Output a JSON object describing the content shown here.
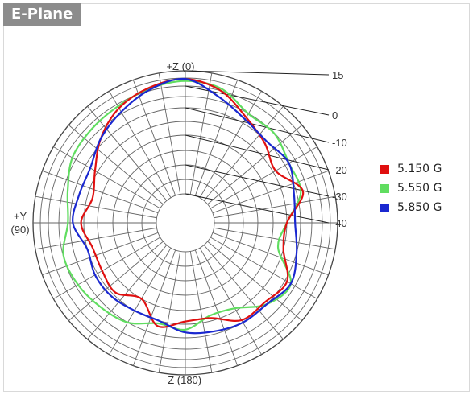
{
  "header": {
    "title": "E-Plane"
  },
  "chart_data": {
    "type": "polar",
    "title": "E-Plane",
    "angle_labels": {
      "top": "+Z (0)",
      "left_line1": "+Y",
      "left_line2": "(90)",
      "bottom": "-Z (180)"
    },
    "radial_tick_labels": [
      "15",
      "0",
      "-10",
      "-20",
      "-30",
      "-40"
    ],
    "grid": true,
    "legend_position": "right",
    "angles_deg": [
      0,
      15,
      30,
      45,
      60,
      75,
      90,
      105,
      120,
      135,
      150,
      165,
      180,
      195,
      210,
      225,
      240,
      255,
      270,
      285,
      300,
      315,
      330,
      345
    ],
    "series": [
      {
        "name": "5.150 G",
        "color": "#e01010",
        "values": [
          7,
          3,
          -2,
          -8,
          -14,
          -17,
          -14,
          -17,
          -17,
          -16,
          -20,
          -13,
          -16,
          -16,
          -11,
          -11,
          -9,
          -15,
          -15,
          -7,
          -14,
          -11,
          -7,
          0
        ]
      },
      {
        "name": "5.550 G",
        "color": "#60dd60",
        "values": [
          5,
          2,
          -1,
          -2,
          -3,
          -7,
          -9,
          -5,
          -6,
          -8,
          -10,
          -14,
          -13,
          -17,
          -16,
          -10,
          -7,
          -17,
          -15,
          -8,
          -8,
          -5,
          -5,
          2
        ]
      },
      {
        "name": "5.850 G",
        "color": "#1a28d0",
        "values": [
          7,
          1,
          -4,
          -8,
          -12,
          -12,
          -11,
          -15,
          -14,
          -14,
          -15,
          -15,
          -12,
          -11,
          -10,
          -10,
          -7,
          -10,
          -12,
          -11,
          -8,
          -10,
          -8,
          -3
        ]
      }
    ]
  }
}
